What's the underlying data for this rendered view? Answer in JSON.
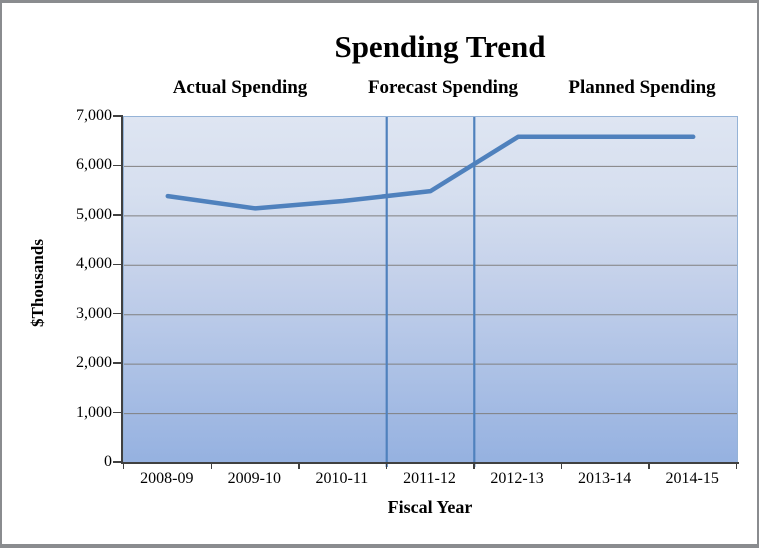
{
  "title": "Spending Trend",
  "axes": {
    "x_title": "Fiscal Year",
    "y_title": "$Thousands"
  },
  "chart_data": {
    "type": "line",
    "title": "Spending Trend",
    "xlabel": "Fiscal Year",
    "ylabel": "$Thousands",
    "categories": [
      "2008-09",
      "2009-10",
      "2010-11",
      "2011-12",
      "2012-13",
      "2013-14",
      "2014-15"
    ],
    "series": [
      {
        "name": "Spending",
        "values": [
          5400,
          5150,
          5300,
          5500,
          6600,
          6600,
          6600
        ]
      }
    ],
    "ylim": [
      0,
      7000
    ],
    "ytick_interval": 1000,
    "ytick_labels": [
      "0",
      "1,000",
      "2,000",
      "3,000",
      "4,000",
      "5,000",
      "6,000",
      "7,000"
    ],
    "grid": "horizontal-only",
    "legend": "none",
    "sections": [
      {
        "label": "Actual Spending",
        "categories": [
          "2008-09",
          "2009-10",
          "2010-11"
        ]
      },
      {
        "label": "Forecast Spending",
        "categories": [
          "2011-12"
        ]
      },
      {
        "label": "Planned Spending",
        "categories": [
          "2012-13",
          "2013-14",
          "2014-15"
        ]
      }
    ],
    "dividers_after_category_index": [
      2,
      3
    ]
  },
  "colors": {
    "line": "#4f81bd",
    "divider": "#4f81bd",
    "gridline": "#808080",
    "plot_border": "#95b3d7",
    "axis": "#404040",
    "plot_bg_top": "#dee5f2",
    "plot_bg_bottom": "#95b1e0",
    "outer_border": "#8a8c8f",
    "text": "#000000"
  }
}
